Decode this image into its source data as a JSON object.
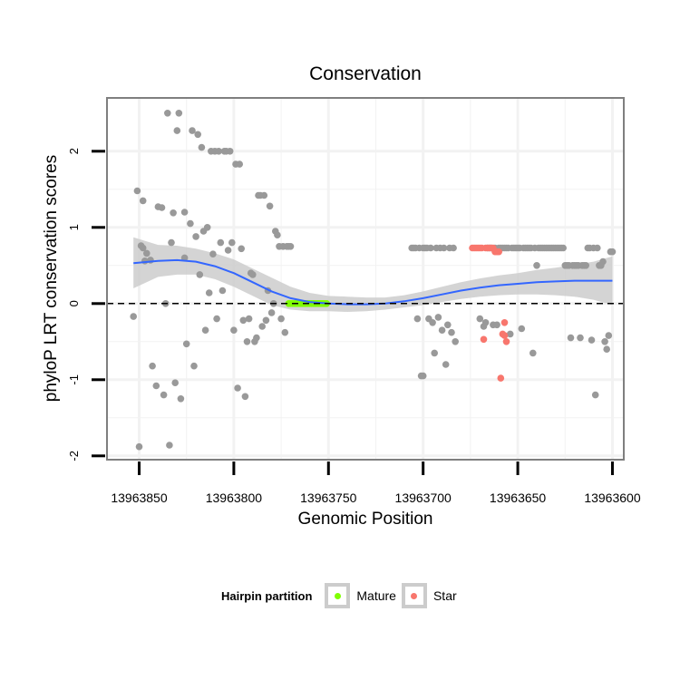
{
  "chart_data": {
    "type": "scatter",
    "title": "Conservation",
    "xlabel": "Genomic Position",
    "ylabel": "phyloP LRT conservation scores",
    "x_reversed": true,
    "xlim": [
      13963867,
      13963594
    ],
    "ylim": [
      -2.05,
      2.7
    ],
    "x_ticks": [
      13963850,
      13963800,
      13963750,
      13963700,
      13963650,
      13963600
    ],
    "x_tick_labels": [
      "13963850",
      "13963800",
      "13963750",
      "13963700",
      "13963650",
      "13963600"
    ],
    "y_ticks": [
      -2,
      -1,
      0,
      1,
      2
    ],
    "y_tick_labels": [
      "-2",
      "-1",
      "0",
      "1",
      "2"
    ],
    "reference_line": {
      "y": 0,
      "style": "dashed"
    },
    "colors": {
      "background": "#ffffff",
      "point_other": "#999999",
      "mature": "#7fff00",
      "star": "#f8766d",
      "smooth": "#3366ff",
      "ribbon": "#cccccc",
      "grid": "#f2f2f2",
      "panel_border": "#7f7f7f"
    },
    "legend": {
      "title": "Hairpin partition",
      "position": "bottom",
      "entries": [
        {
          "label": "Mature",
          "color": "#7fff00"
        },
        {
          "label": "Star",
          "color": "#f8766d"
        }
      ]
    },
    "series": [
      {
        "name": "Other",
        "color": "#999999",
        "points": [
          [
            13963853,
            -0.17
          ],
          [
            13963851,
            1.48
          ],
          [
            13963850,
            -1.88
          ],
          [
            13963849,
            0.76
          ],
          [
            13963848,
            0.73
          ],
          [
            13963848,
            1.35
          ],
          [
            13963847,
            0.56
          ],
          [
            13963846,
            0.66
          ],
          [
            13963844,
            0.57
          ],
          [
            13963843,
            -0.82
          ],
          [
            13963841,
            -1.08
          ],
          [
            13963840,
            1.27
          ],
          [
            13963838,
            1.26
          ],
          [
            13963837,
            -1.2
          ],
          [
            13963836,
            0.0
          ],
          [
            13963835,
            2.5
          ],
          [
            13963834,
            -1.86
          ],
          [
            13963833,
            0.8
          ],
          [
            13963832,
            1.19
          ],
          [
            13963831,
            -1.04
          ],
          [
            13963830,
            2.27
          ],
          [
            13963829,
            2.5
          ],
          [
            13963828,
            -1.25
          ],
          [
            13963826,
            1.2
          ],
          [
            13963826,
            0.6
          ],
          [
            13963825,
            -0.53
          ],
          [
            13963823,
            1.05
          ],
          [
            13963822,
            2.27
          ],
          [
            13963821,
            -0.82
          ],
          [
            13963820,
            0.88
          ],
          [
            13963819,
            2.22
          ],
          [
            13963818,
            0.38
          ],
          [
            13963817,
            2.05
          ],
          [
            13963816,
            0.95
          ],
          [
            13963815,
            -0.35
          ],
          [
            13963814,
            1.0
          ],
          [
            13963813,
            0.14
          ],
          [
            13963812,
            2.0
          ],
          [
            13963811,
            0.65
          ],
          [
            13963810,
            2.0
          ],
          [
            13963809,
            -0.2
          ],
          [
            13963808,
            2.0
          ],
          [
            13963807,
            0.8
          ],
          [
            13963806,
            0.17
          ],
          [
            13963805,
            2.0
          ],
          [
            13963804,
            2.0
          ],
          [
            13963803,
            0.7
          ],
          [
            13963802,
            2.0
          ],
          [
            13963801,
            0.8
          ],
          [
            13963800,
            -0.35
          ],
          [
            13963799,
            1.83
          ],
          [
            13963798,
            -1.11
          ],
          [
            13963797,
            1.83
          ],
          [
            13963796,
            0.72
          ],
          [
            13963795,
            -0.22
          ],
          [
            13963794,
            -1.22
          ],
          [
            13963793,
            -0.5
          ],
          [
            13963792,
            -0.2
          ],
          [
            13963791,
            0.4
          ],
          [
            13963790,
            0.38
          ],
          [
            13963789,
            -0.5
          ],
          [
            13963788,
            -0.45
          ],
          [
            13963787,
            1.42
          ],
          [
            13963786,
            1.42
          ],
          [
            13963785,
            -0.3
          ],
          [
            13963784,
            1.42
          ],
          [
            13963783,
            -0.22
          ],
          [
            13963782,
            0.17
          ],
          [
            13963781,
            1.28
          ],
          [
            13963780,
            -0.12
          ],
          [
            13963779,
            0.0
          ],
          [
            13963778,
            0.95
          ],
          [
            13963777,
            0.9
          ],
          [
            13963776,
            0.75
          ],
          [
            13963775,
            -0.2
          ],
          [
            13963774,
            0.75
          ],
          [
            13963773,
            -0.38
          ],
          [
            13963772,
            0.75
          ],
          [
            13963771,
            0.75
          ],
          [
            13963770,
            0.75
          ],
          [
            13963706,
            0.73
          ],
          [
            13963705,
            0.73
          ],
          [
            13963704,
            0.73
          ],
          [
            13963703,
            -0.2
          ],
          [
            13963702,
            0.73
          ],
          [
            13963701,
            -0.95
          ],
          [
            13963700,
            0.73
          ],
          [
            13963700,
            -0.95
          ],
          [
            13963699,
            0.73
          ],
          [
            13963698,
            0.73
          ],
          [
            13963697,
            -0.2
          ],
          [
            13963696,
            0.73
          ],
          [
            13963695,
            -0.25
          ],
          [
            13963694,
            -0.65
          ],
          [
            13963693,
            0.73
          ],
          [
            13963692,
            -0.18
          ],
          [
            13963691,
            0.73
          ],
          [
            13963690,
            -0.35
          ],
          [
            13963689,
            0.73
          ],
          [
            13963688,
            -0.8
          ],
          [
            13963687,
            -0.28
          ],
          [
            13963686,
            0.73
          ],
          [
            13963685,
            -0.38
          ],
          [
            13963684,
            0.73
          ],
          [
            13963683,
            -0.5
          ],
          [
            13963670,
            -0.2
          ],
          [
            13963668,
            -0.3
          ],
          [
            13963667,
            -0.25
          ],
          [
            13963666,
            0.73
          ],
          [
            13963665,
            0.73
          ],
          [
            13963664,
            0.73
          ],
          [
            13963663,
            -0.28
          ],
          [
            13963662,
            0.73
          ],
          [
            13963661,
            -0.28
          ],
          [
            13963660,
            0.73
          ],
          [
            13963659,
            0.73
          ],
          [
            13963658,
            0.73
          ],
          [
            13963657,
            0.73
          ],
          [
            13963656,
            0.73
          ],
          [
            13963655,
            0.73
          ],
          [
            13963654,
            -0.4
          ],
          [
            13963653,
            0.73
          ],
          [
            13963652,
            0.73
          ],
          [
            13963651,
            0.73
          ],
          [
            13963650,
            0.73
          ],
          [
            13963649,
            0.73
          ],
          [
            13963648,
            -0.33
          ],
          [
            13963647,
            0.73
          ],
          [
            13963646,
            0.73
          ],
          [
            13963645,
            0.73
          ],
          [
            13963644,
            0.73
          ],
          [
            13963643,
            0.73
          ],
          [
            13963642,
            -0.65
          ],
          [
            13963641,
            0.73
          ],
          [
            13963640,
            0.5
          ],
          [
            13963639,
            0.73
          ],
          [
            13963638,
            0.73
          ],
          [
            13963637,
            0.73
          ],
          [
            13963636,
            0.73
          ],
          [
            13963635,
            0.73
          ],
          [
            13963634,
            0.73
          ],
          [
            13963633,
            0.73
          ],
          [
            13963632,
            0.73
          ],
          [
            13963631,
            0.73
          ],
          [
            13963630,
            0.73
          ],
          [
            13963629,
            0.73
          ],
          [
            13963628,
            0.73
          ],
          [
            13963627,
            0.73
          ],
          [
            13963626,
            0.73
          ],
          [
            13963625,
            0.5
          ],
          [
            13963624,
            0.5
          ],
          [
            13963623,
            0.5
          ],
          [
            13963622,
            -0.45
          ],
          [
            13963621,
            0.5
          ],
          [
            13963620,
            0.5
          ],
          [
            13963619,
            0.5
          ],
          [
            13963618,
            0.5
          ],
          [
            13963617,
            -0.45
          ],
          [
            13963616,
            0.5
          ],
          [
            13963615,
            0.5
          ],
          [
            13963614,
            0.5
          ],
          [
            13963613,
            0.73
          ],
          [
            13963612,
            0.73
          ],
          [
            13963611,
            -0.48
          ],
          [
            13963610,
            0.73
          ],
          [
            13963609,
            -1.2
          ],
          [
            13963608,
            0.73
          ],
          [
            13963607,
            0.5
          ],
          [
            13963606,
            0.5
          ],
          [
            13963605,
            0.55
          ],
          [
            13963604,
            -0.5
          ],
          [
            13963603,
            -0.6
          ],
          [
            13963602,
            -0.42
          ],
          [
            13963601,
            0.68
          ],
          [
            13963600,
            0.68
          ]
        ]
      },
      {
        "name": "Mature",
        "color": "#7fff00",
        "points": [
          [
            13963771,
            0.0
          ],
          [
            13963770,
            0.0
          ],
          [
            13963769,
            0.0
          ],
          [
            13963768,
            0.0
          ],
          [
            13963767,
            0.0
          ],
          [
            13963766,
            0.0
          ],
          [
            13963765,
            0.0
          ],
          [
            13963764,
            0.0
          ],
          [
            13963763,
            0.0
          ],
          [
            13963762,
            0.0
          ],
          [
            13963761,
            0.0
          ],
          [
            13963760,
            0.0
          ],
          [
            13963759,
            0.0
          ],
          [
            13963758,
            0.0
          ],
          [
            13963757,
            0.0
          ],
          [
            13963756,
            0.0
          ],
          [
            13963755,
            0.0
          ],
          [
            13963754,
            0.0
          ],
          [
            13963753,
            0.0
          ],
          [
            13963752,
            0.0
          ],
          [
            13963751,
            0.0
          ]
        ]
      },
      {
        "name": "Star",
        "color": "#f8766d",
        "points": [
          [
            13963674,
            0.73
          ],
          [
            13963673,
            0.73
          ],
          [
            13963672,
            0.73
          ],
          [
            13963671,
            0.73
          ],
          [
            13963670,
            0.73
          ],
          [
            13963669,
            0.73
          ],
          [
            13963668,
            -0.47
          ],
          [
            13963667,
            0.73
          ],
          [
            13963666,
            0.73
          ],
          [
            13963665,
            0.73
          ],
          [
            13963664,
            0.73
          ],
          [
            13963663,
            0.73
          ],
          [
            13963662,
            0.68
          ],
          [
            13963661,
            0.68
          ],
          [
            13963660,
            0.68
          ],
          [
            13963659,
            -0.98
          ],
          [
            13963658,
            -0.4
          ],
          [
            13963657,
            -0.25
          ],
          [
            13963657,
            -0.42
          ],
          [
            13963656,
            -0.5
          ]
        ]
      }
    ],
    "smooth": {
      "method": "loess",
      "x": [
        13963853,
        13963840,
        13963830,
        13963820,
        13963810,
        13963800,
        13963790,
        13963780,
        13963770,
        13963760,
        13963750,
        13963740,
        13963730,
        13963720,
        13963710,
        13963700,
        13963690,
        13963680,
        13963670,
        13963660,
        13963650,
        13963640,
        13963630,
        13963620,
        13963610,
        13963600
      ],
      "y": [
        0.53,
        0.56,
        0.57,
        0.55,
        0.49,
        0.4,
        0.28,
        0.16,
        0.07,
        0.02,
        0.0,
        -0.01,
        -0.01,
        0.0,
        0.03,
        0.07,
        0.12,
        0.17,
        0.21,
        0.24,
        0.26,
        0.28,
        0.29,
        0.3,
        0.3,
        0.3
      ],
      "lower": [
        0.2,
        0.35,
        0.38,
        0.38,
        0.32,
        0.22,
        0.1,
        -0.02,
        -0.08,
        -0.1,
        -0.1,
        -0.11,
        -0.1,
        -0.08,
        -0.05,
        -0.02,
        0.02,
        0.06,
        0.09,
        0.11,
        0.12,
        0.12,
        0.11,
        0.09,
        0.05,
        -0.02
      ],
      "upper": [
        0.87,
        0.77,
        0.76,
        0.72,
        0.66,
        0.58,
        0.46,
        0.34,
        0.22,
        0.14,
        0.1,
        0.09,
        0.08,
        0.08,
        0.11,
        0.16,
        0.22,
        0.28,
        0.33,
        0.37,
        0.4,
        0.44,
        0.47,
        0.51,
        0.55,
        0.62
      ]
    }
  }
}
